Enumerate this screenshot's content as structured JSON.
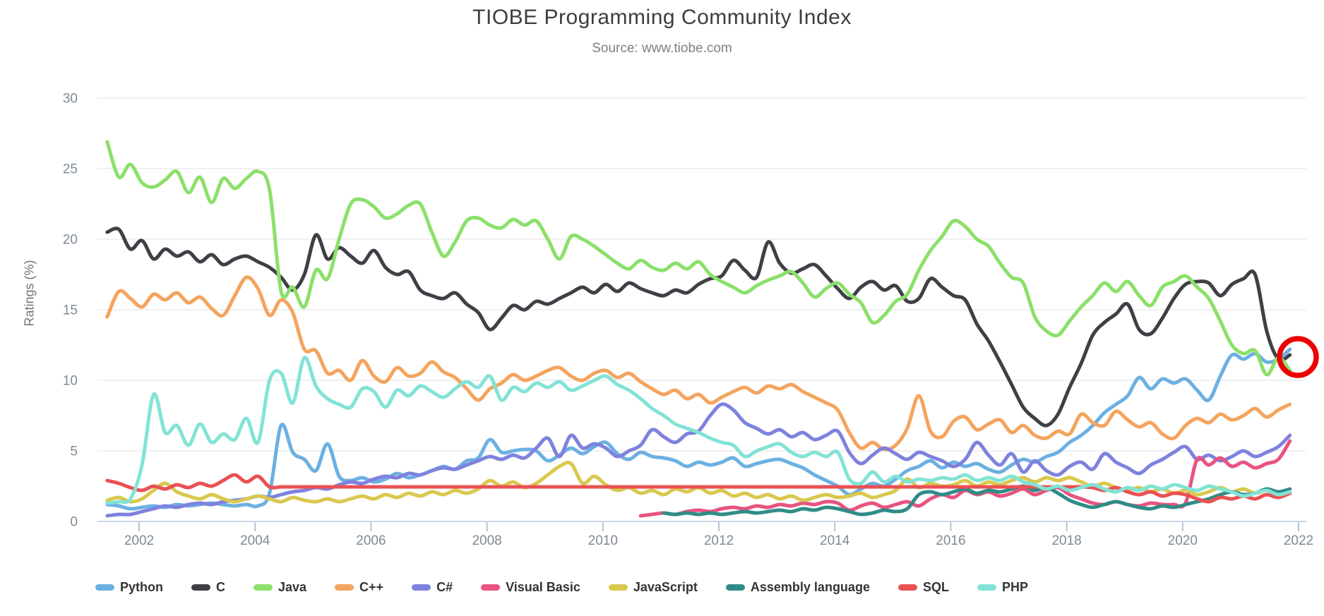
{
  "chart_data": {
    "type": "line",
    "title": "TIOBE Programming Community Index",
    "subtitle": "Source: www.tiobe.com",
    "xlabel": "",
    "ylabel": "Ratings (%)",
    "ylim": [
      0,
      30
    ],
    "grid": true,
    "legend_position": "bottom",
    "y_ticks": [
      0,
      5,
      10,
      15,
      20,
      25,
      30
    ],
    "x_ticks": [
      "2002",
      "2004",
      "2006",
      "2008",
      "2010",
      "2012",
      "2014",
      "2016",
      "2018",
      "2020",
      "2022"
    ],
    "x_start": 2001.45,
    "x_step": 0.2,
    "annotation": {
      "shape": "circle",
      "x": 2022.0,
      "y": 11.65,
      "color": "#ec0000"
    },
    "series": [
      {
        "name": "Python",
        "color": "#6cb0e2",
        "values": [
          1.2,
          1.1,
          0.9,
          1.0,
          1.1,
          1.0,
          1.2,
          1.1,
          1.2,
          1.3,
          1.2,
          1.1,
          1.2,
          1.1,
          2.0,
          6.8,
          4.9,
          4.4,
          3.6,
          5.5,
          3.2,
          2.9,
          3.1,
          2.8,
          3.0,
          3.4,
          3.1,
          3.3,
          3.6,
          3.9,
          3.7,
          4.3,
          4.5,
          5.8,
          4.9,
          5.0,
          5.1,
          5.0,
          4.3,
          4.7,
          5.2,
          4.8,
          5.3,
          5.6,
          4.8,
          4.4,
          4.9,
          4.6,
          4.5,
          4.3,
          3.9,
          4.2,
          4.0,
          4.2,
          4.5,
          3.9,
          4.1,
          4.3,
          4.4,
          4.1,
          3.8,
          3.3,
          2.9,
          2.5,
          1.9,
          2.3,
          2.7,
          2.5,
          3.0,
          3.6,
          3.9,
          4.3,
          3.8,
          4.2,
          3.9,
          4.1,
          3.7,
          3.5,
          4.0,
          4.4,
          4.2,
          4.6,
          4.9,
          5.6,
          6.1,
          6.8,
          7.7,
          8.3,
          8.9,
          10.2,
          9.4,
          10.1,
          9.8,
          10.1,
          9.3,
          8.6,
          10.3,
          11.8,
          11.5,
          11.9,
          11.3,
          11.5,
          12.2
        ]
      },
      {
        "name": "C",
        "color": "#3f3f46",
        "values": [
          20.5,
          20.7,
          19.3,
          19.9,
          18.6,
          19.3,
          18.8,
          19.1,
          18.4,
          18.9,
          18.2,
          18.6,
          18.8,
          18.4,
          18.0,
          17.3,
          16.4,
          17.5,
          20.3,
          18.6,
          19.4,
          18.8,
          18.3,
          19.2,
          18.0,
          17.5,
          17.7,
          16.4,
          16.0,
          15.8,
          16.2,
          15.4,
          14.8,
          13.6,
          14.4,
          15.3,
          15.0,
          15.6,
          15.4,
          15.8,
          16.2,
          16.6,
          16.2,
          16.8,
          16.3,
          16.9,
          16.5,
          16.2,
          16.0,
          16.4,
          16.2,
          16.8,
          17.2,
          17.4,
          18.5,
          17.8,
          17.3,
          19.8,
          18.3,
          17.6,
          17.9,
          18.2,
          17.4,
          16.5,
          15.8,
          16.6,
          17.0,
          16.4,
          16.7,
          15.6,
          15.8,
          17.2,
          16.6,
          16.0,
          15.7,
          14.0,
          12.8,
          11.3,
          9.7,
          8.1,
          7.3,
          6.8,
          7.6,
          9.5,
          11.2,
          13.2,
          14.1,
          14.7,
          15.4,
          13.6,
          13.3,
          14.4,
          15.8,
          16.8,
          17.0,
          16.9,
          16.0,
          16.8,
          17.2,
          17.5,
          13.5,
          11.5,
          11.8
        ]
      },
      {
        "name": "Java",
        "color": "#8be06a",
        "values": [
          26.9,
          24.4,
          25.3,
          24.0,
          23.7,
          24.2,
          24.8,
          23.3,
          24.4,
          22.6,
          24.3,
          23.6,
          24.3,
          24.8,
          23.5,
          16.3,
          16.6,
          15.2,
          17.8,
          17.2,
          20.0,
          22.5,
          22.8,
          22.3,
          21.5,
          21.8,
          22.4,
          22.5,
          20.5,
          18.8,
          19.8,
          21.3,
          21.5,
          21.0,
          20.8,
          21.4,
          21.0,
          21.3,
          20.0,
          18.6,
          20.2,
          20.0,
          19.5,
          18.9,
          18.3,
          17.9,
          18.5,
          18.0,
          17.8,
          18.3,
          17.9,
          18.4,
          17.5,
          17.0,
          16.6,
          16.2,
          16.7,
          17.1,
          17.4,
          17.7,
          16.9,
          15.9,
          16.5,
          16.9,
          16.1,
          15.5,
          14.1,
          14.6,
          15.6,
          16.1,
          17.8,
          19.2,
          20.2,
          21.3,
          20.9,
          20.0,
          19.5,
          18.3,
          17.3,
          16.9,
          14.5,
          13.5,
          13.2,
          14.2,
          15.2,
          16.0,
          16.9,
          16.3,
          17.0,
          16.0,
          15.3,
          16.6,
          17.0,
          17.4,
          16.6,
          15.8,
          14.2,
          12.5,
          11.9,
          12.1,
          10.4,
          11.6,
          10.7
        ]
      },
      {
        "name": "C++",
        "color": "#f4a45e",
        "values": [
          14.5,
          16.3,
          15.8,
          15.2,
          16.1,
          15.7,
          16.2,
          15.5,
          15.9,
          15.1,
          14.6,
          16.0,
          17.3,
          16.5,
          14.6,
          15.7,
          14.8,
          12.2,
          12.1,
          10.5,
          10.7,
          10.0,
          11.4,
          10.3,
          9.9,
          10.9,
          10.3,
          10.5,
          11.3,
          10.6,
          10.2,
          9.4,
          8.6,
          9.4,
          9.8,
          10.4,
          10.0,
          10.3,
          10.7,
          10.9,
          10.3,
          10.0,
          10.5,
          10.7,
          10.2,
          10.5,
          9.9,
          9.4,
          9.0,
          9.3,
          8.7,
          9.0,
          8.4,
          8.8,
          9.2,
          9.5,
          9.1,
          9.6,
          9.4,
          9.7,
          9.2,
          8.8,
          8.4,
          7.9,
          6.3,
          5.2,
          5.6,
          5.1,
          5.4,
          6.6,
          8.9,
          6.4,
          6.0,
          7.1,
          7.4,
          6.5,
          6.9,
          7.2,
          6.3,
          6.8,
          6.1,
          5.9,
          6.4,
          6.2,
          7.6,
          7.0,
          6.8,
          7.8,
          7.2,
          6.7,
          7.0,
          6.2,
          5.9,
          6.8,
          7.3,
          7.0,
          7.6,
          7.2,
          7.5,
          8.0,
          7.4,
          7.9,
          8.3
        ]
      },
      {
        "name": "C#",
        "color": "#7e82dd",
        "values": [
          0.4,
          0.5,
          0.5,
          0.7,
          0.9,
          1.1,
          1.0,
          1.2,
          1.3,
          1.2,
          1.4,
          1.5,
          1.6,
          1.8,
          1.7,
          1.9,
          2.1,
          2.2,
          2.4,
          2.3,
          2.6,
          2.8,
          2.7,
          3.0,
          3.2,
          3.1,
          3.4,
          3.3,
          3.6,
          3.8,
          3.7,
          4.0,
          4.3,
          4.6,
          4.4,
          4.7,
          4.5,
          5.2,
          5.9,
          4.6,
          6.1,
          5.2,
          5.5,
          5.2,
          4.6,
          5.0,
          5.4,
          6.5,
          6.0,
          5.6,
          6.2,
          6.4,
          7.5,
          8.3,
          7.9,
          7.0,
          6.6,
          6.2,
          6.5,
          6.0,
          6.3,
          5.8,
          6.1,
          6.4,
          4.9,
          4.1,
          4.7,
          5.2,
          4.8,
          4.4,
          4.9,
          4.6,
          4.3,
          3.9,
          4.4,
          5.6,
          4.7,
          4.0,
          4.8,
          3.5,
          4.3,
          3.6,
          3.3,
          3.9,
          4.2,
          3.7,
          4.8,
          4.2,
          3.8,
          3.4,
          4.0,
          4.4,
          4.9,
          5.3,
          4.4,
          4.7,
          4.3,
          4.6,
          5.0,
          4.6,
          4.9,
          5.3,
          6.1
        ]
      },
      {
        "name": "Visual Basic",
        "color": "#e8537f",
        "values": [
          null,
          null,
          null,
          null,
          null,
          null,
          null,
          null,
          null,
          null,
          null,
          null,
          null,
          null,
          null,
          null,
          null,
          null,
          null,
          null,
          null,
          null,
          null,
          null,
          null,
          null,
          null,
          null,
          null,
          null,
          null,
          null,
          null,
          null,
          null,
          null,
          null,
          null,
          null,
          null,
          null,
          null,
          null,
          null,
          null,
          null,
          0.4,
          0.5,
          0.6,
          0.5,
          0.7,
          0.8,
          0.7,
          0.9,
          1.0,
          0.9,
          1.1,
          1.0,
          1.2,
          1.1,
          1.3,
          1.2,
          1.4,
          1.3,
          0.8,
          1.1,
          1.3,
          1.0,
          1.2,
          1.4,
          1.1,
          1.6,
          1.9,
          1.7,
          2.2,
          1.9,
          2.1,
          1.8,
          2.0,
          2.3,
          1.9,
          2.2,
          2.4,
          1.9,
          1.6,
          1.3,
          1.2,
          1.4,
          1.2,
          1.1,
          1.3,
          1.2,
          1.2,
          1.3,
          4.4,
          4.0,
          4.5,
          3.9,
          4.2,
          3.8,
          4.1,
          4.4,
          5.7
        ]
      },
      {
        "name": "JavaScript",
        "color": "#d9c84e",
        "values": [
          1.5,
          1.7,
          1.4,
          1.6,
          2.2,
          2.7,
          2.1,
          1.8,
          1.6,
          1.9,
          1.6,
          1.4,
          1.6,
          1.8,
          1.6,
          1.4,
          1.7,
          1.5,
          1.4,
          1.6,
          1.4,
          1.6,
          1.8,
          1.6,
          1.9,
          1.7,
          2.0,
          1.8,
          2.1,
          1.9,
          2.2,
          2.0,
          2.3,
          2.9,
          2.5,
          2.8,
          2.4,
          2.7,
          3.3,
          3.9,
          4.1,
          2.7,
          3.2,
          2.6,
          2.2,
          2.4,
          2.0,
          2.2,
          1.9,
          2.3,
          2.1,
          2.4,
          2.0,
          2.2,
          1.8,
          2.0,
          1.7,
          1.9,
          1.6,
          1.8,
          1.5,
          1.7,
          1.9,
          1.7,
          1.8,
          2.0,
          1.7,
          1.9,
          2.2,
          3.0,
          2.4,
          2.7,
          2.5,
          2.6,
          2.9,
          2.5,
          2.8,
          2.6,
          2.9,
          3.1,
          2.8,
          3.1,
          2.9,
          3.1,
          2.8,
          2.5,
          2.7,
          2.4,
          2.2,
          2.4,
          2.1,
          2.3,
          2.0,
          2.2,
          1.9,
          2.1,
          2.4,
          2.1,
          2.3,
          2.0,
          2.2,
          1.9,
          2.1
        ]
      },
      {
        "name": "Assembly language",
        "color": "#2f8c87",
        "values": [
          null,
          null,
          null,
          null,
          null,
          null,
          null,
          null,
          null,
          null,
          null,
          null,
          null,
          null,
          null,
          null,
          null,
          null,
          null,
          null,
          null,
          null,
          null,
          null,
          null,
          null,
          null,
          null,
          null,
          null,
          null,
          null,
          null,
          null,
          null,
          null,
          null,
          null,
          null,
          null,
          null,
          null,
          null,
          null,
          null,
          null,
          null,
          null,
          0.6,
          0.5,
          0.6,
          0.5,
          0.6,
          0.5,
          0.6,
          0.7,
          0.6,
          0.7,
          0.8,
          0.7,
          0.9,
          0.8,
          1.0,
          0.9,
          0.7,
          0.5,
          0.6,
          0.8,
          0.7,
          0.9,
          1.9,
          2.1,
          1.9,
          2.1,
          2.3,
          2.0,
          2.2,
          2.1,
          2.3,
          2.5,
          2.2,
          2.4,
          2.0,
          1.5,
          1.2,
          1.0,
          1.2,
          1.4,
          1.2,
          1.0,
          0.9,
          1.1,
          1.0,
          1.2,
          1.4,
          1.6,
          1.9,
          2.1,
          1.9,
          2.0,
          2.3,
          2.1,
          2.3
        ]
      },
      {
        "name": "SQL",
        "color": "#ea5153",
        "values": [
          2.9,
          2.7,
          2.4,
          2.2,
          2.5,
          2.3,
          2.6,
          2.4,
          2.7,
          2.5,
          2.9,
          3.3,
          2.8,
          3.2,
          2.45,
          2.45,
          2.45,
          2.45,
          2.45,
          2.45,
          2.45,
          2.45,
          2.45,
          2.45,
          2.45,
          2.45,
          2.45,
          2.45,
          2.45,
          2.45,
          2.45,
          2.45,
          2.45,
          2.45,
          2.45,
          2.45,
          2.45,
          2.45,
          2.45,
          2.45,
          2.45,
          2.45,
          2.45,
          2.45,
          2.45,
          2.45,
          2.45,
          2.45,
          2.45,
          2.45,
          2.45,
          2.45,
          2.45,
          2.45,
          2.45,
          2.45,
          2.45,
          2.45,
          2.45,
          2.45,
          2.45,
          2.45,
          2.45,
          2.45,
          2.45,
          2.45,
          2.45,
          2.45,
          2.45,
          2.45,
          2.45,
          2.45,
          2.45,
          2.45,
          2.45,
          2.45,
          2.45,
          2.45,
          2.45,
          2.45,
          2.45,
          2.45,
          2.45,
          2.45,
          2.45,
          2.4,
          2.2,
          2.4,
          2.1,
          1.9,
          2.1,
          1.8,
          2.0,
          1.9,
          1.6,
          1.4,
          1.7,
          1.6,
          1.8,
          1.6,
          1.9,
          1.7,
          2.0
        ]
      },
      {
        "name": "PHP",
        "color": "#82e3d5",
        "values": [
          1.3,
          1.4,
          1.6,
          4.0,
          9.0,
          6.3,
          6.8,
          5.4,
          6.9,
          5.6,
          6.2,
          5.8,
          7.3,
          5.6,
          10.0,
          10.5,
          8.4,
          11.6,
          9.6,
          8.7,
          8.3,
          8.1,
          9.4,
          9.2,
          8.1,
          9.3,
          8.9,
          9.6,
          9.2,
          8.8,
          9.4,
          9.9,
          9.5,
          10.3,
          8.6,
          9.5,
          9.2,
          9.8,
          9.5,
          9.9,
          9.3,
          9.6,
          10.0,
          10.3,
          9.7,
          9.3,
          8.7,
          8.0,
          7.5,
          6.9,
          6.6,
          6.3,
          5.9,
          5.6,
          5.4,
          4.6,
          5.0,
          5.3,
          5.5,
          4.9,
          4.6,
          4.9,
          4.6,
          4.9,
          3.0,
          2.7,
          3.5,
          2.8,
          3.2,
          2.8,
          3.0,
          2.9,
          3.1,
          3.0,
          3.3,
          2.9,
          3.1,
          2.9,
          3.2,
          2.8,
          2.6,
          2.3,
          2.5,
          2.2,
          2.4,
          2.6,
          2.3,
          2.1,
          2.4,
          2.2,
          2.5,
          2.3,
          2.6,
          2.4,
          2.2,
          2.5,
          2.3,
          2.1,
          1.8,
          2.0,
          2.2,
          1.9,
          2.1
        ]
      }
    ]
  }
}
